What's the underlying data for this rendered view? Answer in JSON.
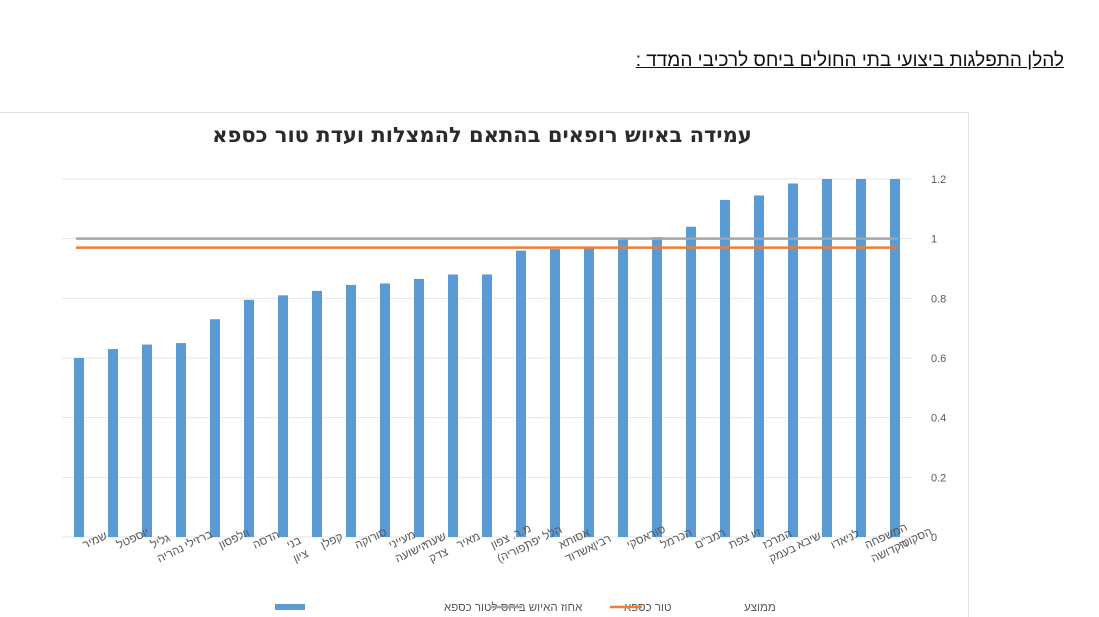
{
  "heading": "להלן התפלגות ביצועי בתי החולים ביחס לרכיבי המדד :",
  "colors": {
    "bars": "#5b9bd5",
    "target_line": "#a5a5a5",
    "average_line": "#ed7d31",
    "grid": "#e6e6e6"
  },
  "chart_data": {
    "type": "bar",
    "title": "עמידה באיוש רופאים בהתאם להמצלות ועדת טור כספא",
    "categories": [
      "שמיר",
      "יוספטל",
      "גליל נהריה",
      "ברזילי",
      "וולפסון",
      "הדסה",
      "בני ציון",
      "קפלן",
      "סורוקה",
      "מעייני הישועה",
      "שערי צדק",
      "מאיר",
      "מ.ר. צפון (פוריה)",
      "הלל יפה",
      "אסותא אשדוד",
      "רבין",
      "סוראסקי",
      "הכרמל",
      "רמב\"ם",
      "זיו צפת",
      "המרכז בעמק",
      "שיבא",
      "לניאדו",
      "המשפחה הקדושה",
      "הסקוטי"
    ],
    "series": [
      {
        "name": "אחוז האיוש ביחס לטור כספא",
        "kind": "bar",
        "values": [
          0.6,
          0.63,
          0.645,
          0.65,
          0.73,
          0.795,
          0.81,
          0.825,
          0.845,
          0.85,
          0.865,
          0.88,
          0.88,
          0.96,
          0.965,
          0.97,
          1.0,
          1.005,
          1.04,
          1.13,
          1.145,
          1.185,
          1.2,
          1.2,
          1.2
        ]
      },
      {
        "name": "טור כספא",
        "kind": "line",
        "value": 1.0
      },
      {
        "name": "ממוצע",
        "kind": "line",
        "value": 0.97
      }
    ],
    "ylim": [
      0,
      1.2
    ],
    "yticks": [
      "0",
      "0.2",
      "0.4",
      "0.6",
      "0.8",
      "1",
      "1.2"
    ],
    "grid": true,
    "y_axis_side": "right",
    "legend_position": "bottom"
  }
}
